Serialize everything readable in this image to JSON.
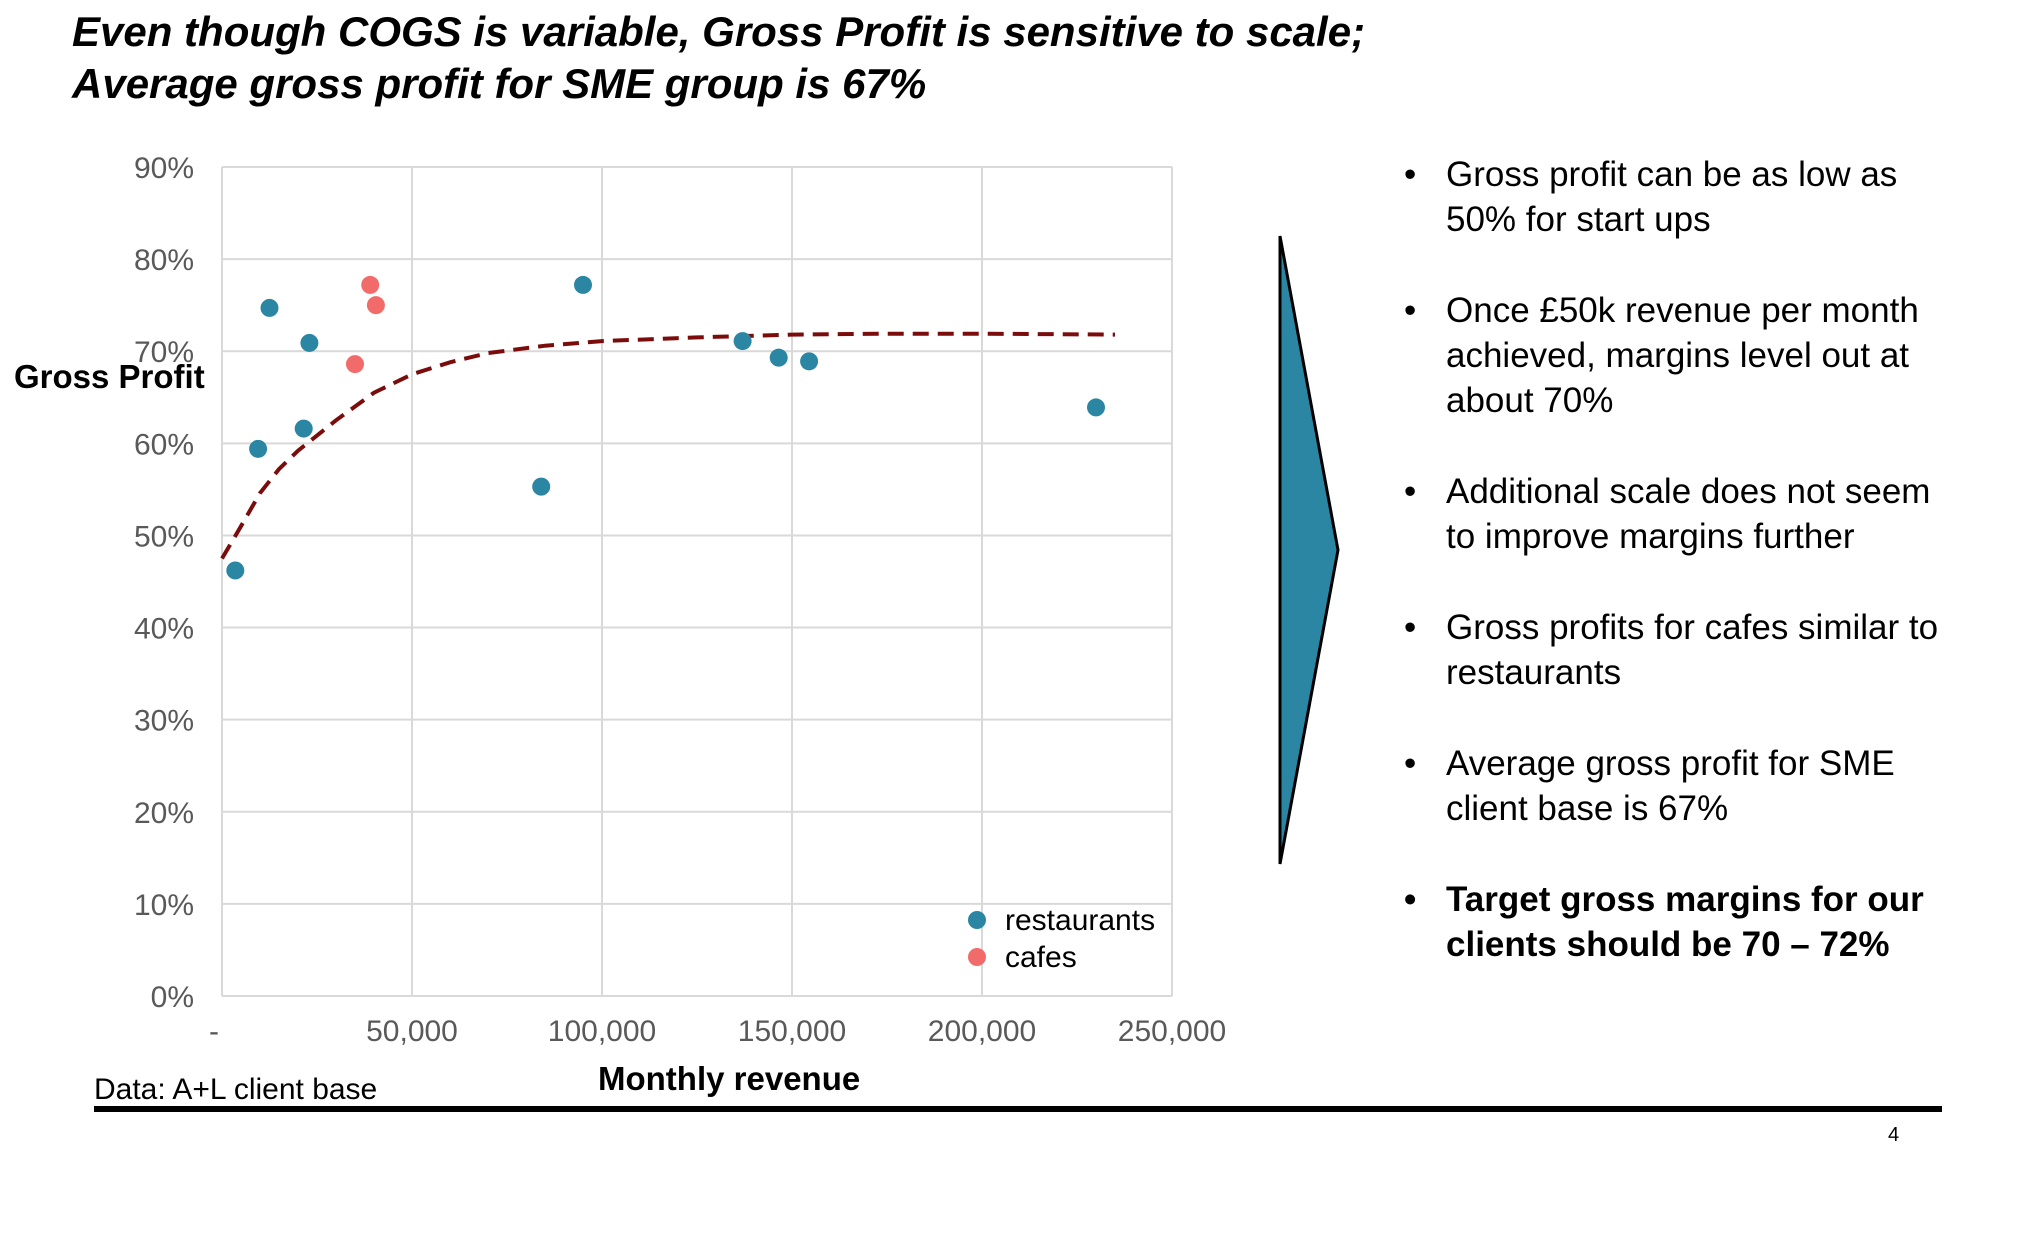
{
  "title": {
    "line1": "Even though COGS is variable, Gross Profit is sensitive to scale;",
    "line2": "Average gross profit for SME group is 67%"
  },
  "chart_data": {
    "type": "scatter",
    "xlabel": "Monthly revenue",
    "ylabel": "Gross Profit",
    "xlim": [
      0,
      250000
    ],
    "ylim": [
      0,
      0.9
    ],
    "xticks": [
      "-",
      "50,000",
      "100,000",
      "150,000",
      "200,000",
      "250,000"
    ],
    "yticks": [
      "0%",
      "10%",
      "20%",
      "30%",
      "40%",
      "50%",
      "60%",
      "70%",
      "80%",
      "90%"
    ],
    "grid": true,
    "legend_position": "bottom-right",
    "series": [
      {
        "name": "restaurants",
        "color": "#2A86A2",
        "points": [
          {
            "x": 3500,
            "y": 0.462
          },
          {
            "x": 9500,
            "y": 0.594
          },
          {
            "x": 12500,
            "y": 0.747
          },
          {
            "x": 21500,
            "y": 0.616
          },
          {
            "x": 23000,
            "y": 0.709
          },
          {
            "x": 84000,
            "y": 0.553
          },
          {
            "x": 95000,
            "y": 0.772
          },
          {
            "x": 137000,
            "y": 0.711
          },
          {
            "x": 146500,
            "y": 0.693
          },
          {
            "x": 154500,
            "y": 0.689
          },
          {
            "x": 230000,
            "y": 0.639
          }
        ]
      },
      {
        "name": "cafes",
        "color": "#F26B6B",
        "points": [
          {
            "x": 35000,
            "y": 0.686
          },
          {
            "x": 39000,
            "y": 0.772
          },
          {
            "x": 40500,
            "y": 0.75
          }
        ]
      }
    ],
    "trendline": {
      "style": "dashed",
      "color": "#7B0C0C",
      "points": [
        {
          "x": 0,
          "y": 0.475
        },
        {
          "x": 5000,
          "y": 0.51
        },
        {
          "x": 10000,
          "y": 0.546
        },
        {
          "x": 15000,
          "y": 0.572
        },
        {
          "x": 20000,
          "y": 0.592
        },
        {
          "x": 30000,
          "y": 0.625
        },
        {
          "x": 40000,
          "y": 0.655
        },
        {
          "x": 50000,
          "y": 0.675
        },
        {
          "x": 60000,
          "y": 0.688
        },
        {
          "x": 70000,
          "y": 0.698
        },
        {
          "x": 85000,
          "y": 0.706
        },
        {
          "x": 100000,
          "y": 0.711
        },
        {
          "x": 125000,
          "y": 0.715
        },
        {
          "x": 150000,
          "y": 0.718
        },
        {
          "x": 175000,
          "y": 0.719
        },
        {
          "x": 200000,
          "y": 0.719
        },
        {
          "x": 235000,
          "y": 0.718
        }
      ]
    }
  },
  "source": "Data: A+L client base",
  "bullets": [
    {
      "text": "Gross profit can be as low as 50% for start ups",
      "bold": false
    },
    {
      "text": "Once £50k revenue per month achieved, margins level out at about 70%",
      "bold": false
    },
    {
      "text": "Additional scale does not seem to improve margins further",
      "bold": false
    },
    {
      "text": "Gross profits for cafes similar to restaurants",
      "bold": false
    },
    {
      "text": "Average gross profit for SME client base is 67%",
      "bold": false
    },
    {
      "text": "Target gross margins for our clients should be 70 – 72%",
      "bold": true
    }
  ],
  "arrow": {
    "color": "#2A86A2"
  },
  "page_number": "4"
}
